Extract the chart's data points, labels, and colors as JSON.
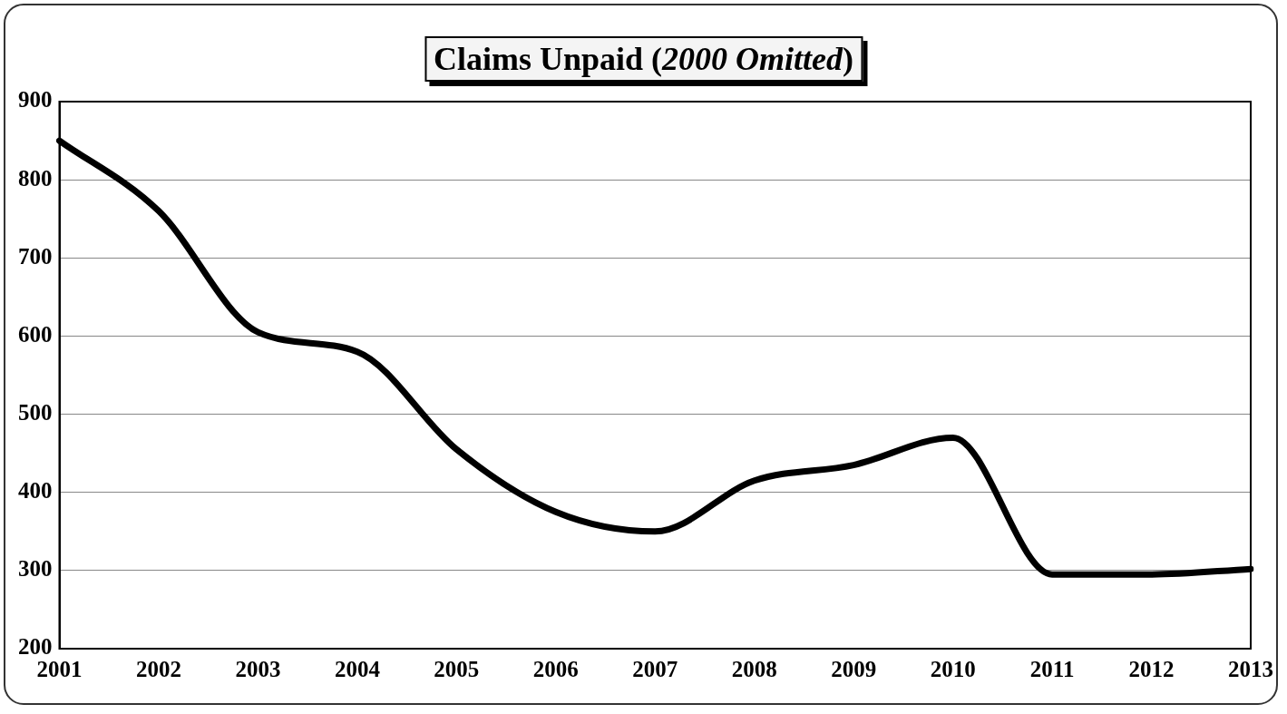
{
  "chart_data": {
    "type": "line",
    "title": "Claims Unpaid (2000 Omitted)",
    "categories": [
      "2001",
      "2002",
      "2003",
      "2004",
      "2005",
      "2006",
      "2007",
      "2008",
      "2009",
      "2010",
      "2011",
      "2012",
      "2013"
    ],
    "series": [
      {
        "color": "#000000",
        "values": [
          850,
          760,
          605,
          580,
          455,
          375,
          350,
          415,
          435,
          470,
          295,
          295,
          302
        ]
      }
    ],
    "ylim": [
      200,
      900
    ],
    "yticks": [
      200,
      300,
      400,
      500,
      600,
      700,
      800,
      900
    ],
    "grid": "y",
    "legend": false,
    "marker": "none",
    "line_style": "solid"
  }
}
